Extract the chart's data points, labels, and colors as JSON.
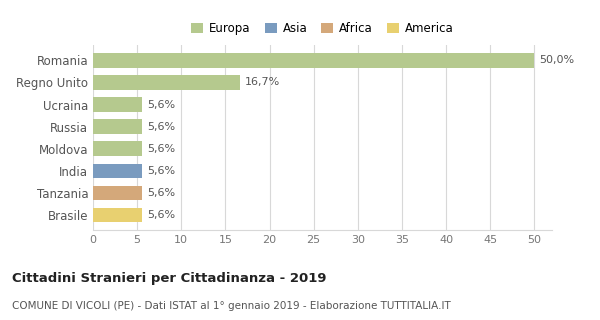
{
  "countries": [
    "Romania",
    "Regno Unito",
    "Ucraina",
    "Russia",
    "Moldova",
    "India",
    "Tanzania",
    "Brasile"
  ],
  "values": [
    50.0,
    16.7,
    5.6,
    5.6,
    5.6,
    5.6,
    5.6,
    5.6
  ],
  "labels": [
    "50,0%",
    "16,7%",
    "5,6%",
    "5,6%",
    "5,6%",
    "5,6%",
    "5,6%",
    "5,6%"
  ],
  "colors": [
    "#b5c98e",
    "#b5c98e",
    "#b5c98e",
    "#b5c98e",
    "#b5c98e",
    "#7a9bbf",
    "#d4a87a",
    "#e8d070"
  ],
  "legend": [
    {
      "label": "Europa",
      "color": "#b5c98e"
    },
    {
      "label": "Asia",
      "color": "#7a9bbf"
    },
    {
      "label": "Africa",
      "color": "#d4a87a"
    },
    {
      "label": "America",
      "color": "#e8d070"
    }
  ],
  "xlim": [
    0,
    52
  ],
  "xticks": [
    0,
    5,
    10,
    15,
    20,
    25,
    30,
    35,
    40,
    45,
    50
  ],
  "title": "Cittadini Stranieri per Cittadinanza - 2019",
  "subtitle": "COMUNE DI VICOLI (PE) - Dati ISTAT al 1° gennaio 2019 - Elaborazione TUTTITALIA.IT",
  "background_color": "#ffffff",
  "grid_color": "#d8d8d8",
  "bar_height": 0.65
}
